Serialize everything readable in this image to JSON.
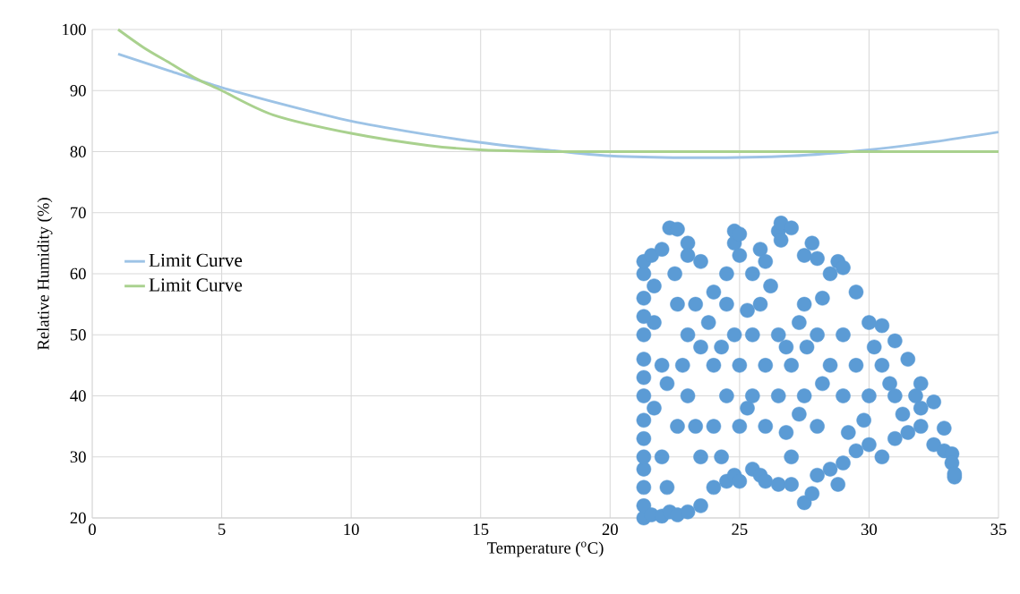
{
  "chart_data": {
    "type": "scatter",
    "xlabel": "Temperature ($^{o}$C)",
    "ylabel": "Relative Humidity (%)",
    "xlim": [
      0,
      35
    ],
    "ylim": [
      20,
      100
    ],
    "xticks": [
      0,
      5,
      10,
      15,
      20,
      25,
      30,
      35
    ],
    "yticks": [
      20,
      30,
      40,
      50,
      60,
      70,
      80,
      90,
      100
    ],
    "grid": true,
    "legend": "left",
    "marker": "circle",
    "series": [
      {
        "color": "#5b9bd5",
        "x": [
          21.7,
          21.7,
          21.7,
          22.2,
          22.2,
          22.8,
          23.3,
          23.3,
          23.8,
          24.3,
          24.3,
          25.3,
          25.3,
          26.2,
          26.8,
          26.8,
          27.3,
          27.3,
          28.2,
          28.2,
          29.2,
          29.8,
          30.2,
          30.8,
          31.3,
          31.8,
          22.5,
          24.5,
          27.6,
          21.3,
          21.3,
          21.3,
          21.3,
          21.3,
          21.3,
          21.3,
          21.3,
          21.3,
          21.3,
          21.3,
          21.3,
          21.3,
          21.3,
          21.3,
          21.6,
          21.6,
          22,
          22,
          22,
          22,
          22.3,
          22.3,
          22.6,
          22.6,
          22.6,
          22.6,
          23,
          23,
          23,
          23,
          23,
          23.5,
          23.5,
          23.5,
          23.5,
          24,
          24,
          24,
          24,
          24.5,
          24.5,
          24.5,
          24.8,
          24.8,
          24.8,
          24.8,
          25,
          25,
          25,
          25,
          25,
          25.5,
          25.5,
          25.5,
          25.5,
          25.8,
          25.8,
          25.8,
          26,
          26,
          26,
          26,
          26.5,
          26.5,
          26.5,
          26.5,
          26.6,
          26.6,
          27,
          27,
          27,
          27,
          27.5,
          27.5,
          27.5,
          27.5,
          27.8,
          27.8,
          28,
          28,
          28,
          28,
          28.5,
          28.5,
          28.5,
          28.8,
          28.8,
          29,
          29,
          29,
          29,
          29.5,
          29.5,
          29.5,
          30,
          30,
          30,
          30.5,
          30.5,
          30.5,
          31,
          31,
          31,
          31.5,
          31.5,
          32,
          32,
          32,
          32.5,
          32.5,
          32.9,
          32.9,
          33.2,
          33.2,
          33.3,
          33.3
        ],
        "values": [
          38,
          52,
          58,
          25,
          42,
          45,
          35,
          55,
          52,
          30,
          48,
          38,
          54,
          58,
          34,
          48,
          52,
          37,
          42,
          56,
          34,
          36,
          48,
          42,
          37,
          40,
          60,
          60,
          48,
          20,
          22,
          25,
          28,
          30,
          33,
          36,
          40,
          43,
          46,
          50,
          53,
          56,
          60,
          62,
          63,
          20.5,
          64,
          20.3,
          45,
          30,
          67.5,
          21,
          67.3,
          20.5,
          55,
          35,
          65,
          63,
          21,
          50,
          40,
          62,
          22,
          48,
          30,
          57,
          25,
          45,
          35,
          55,
          26,
          40,
          67,
          65,
          27,
          50,
          66.5,
          63,
          26,
          45,
          35,
          60,
          28,
          40,
          50,
          64,
          27,
          55,
          62,
          26,
          45,
          35,
          67,
          25.5,
          50,
          40,
          68.3,
          65.5,
          67.5,
          25.5,
          45,
          30,
          63,
          22.5,
          55,
          40,
          65,
          24,
          62.5,
          27,
          50,
          35,
          60,
          28,
          45,
          62,
          25.5,
          61,
          29,
          40,
          50,
          57,
          31,
          45,
          52,
          32,
          40,
          51.5,
          30,
          45,
          49,
          33,
          40,
          46,
          34,
          42,
          35,
          38,
          39,
          32,
          34.7,
          31,
          30.5,
          29,
          26.7,
          27.2
        ]
      },
      {
        "type": "line",
        "name": "Limit Curve",
        "color": "#9dc3e6",
        "marker": "none",
        "x": [
          1,
          3,
          5,
          7.5,
          10,
          12.5,
          15,
          17.5,
          20,
          23.5,
          27,
          30,
          32.5,
          35
        ],
        "values": [
          96,
          93.2,
          90.5,
          87.6,
          85,
          83.1,
          81.5,
          80.3,
          79.3,
          79,
          79.3,
          80.3,
          81.6,
          83.2
        ]
      },
      {
        "type": "line",
        "name": "Limit Curve",
        "color": "#a9d18e",
        "marker": "none",
        "x": [
          1,
          2,
          3,
          4,
          5,
          7,
          10,
          13,
          15,
          18,
          25,
          35
        ],
        "values": [
          100,
          97,
          94.5,
          92,
          90,
          86,
          83,
          81,
          80.3,
          80,
          80,
          80
        ]
      }
    ]
  }
}
